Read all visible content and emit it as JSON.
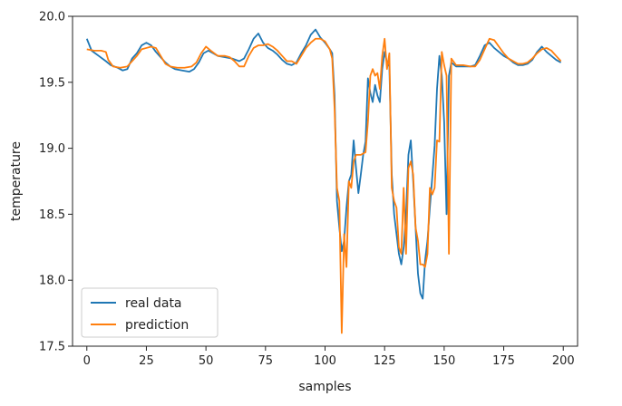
{
  "chart_data": {
    "type": "line",
    "title": "",
    "xlabel": "samples",
    "ylabel": "temperature",
    "xlim": [
      -6,
      206
    ],
    "ylim": [
      17.5,
      20.0
    ],
    "x_ticks": [
      0,
      25,
      50,
      75,
      100,
      125,
      150,
      175,
      200
    ],
    "y_ticks": [
      17.5,
      18.0,
      18.5,
      19.0,
      19.5,
      20.0
    ],
    "x_tick_labels": [
      "0",
      "25",
      "50",
      "75",
      "100",
      "125",
      "150",
      "175",
      "200"
    ],
    "y_tick_labels": [
      "17.5",
      "18.0",
      "18.5",
      "19.0",
      "19.5",
      "20.0"
    ],
    "grid": false,
    "legend": "lower-left",
    "series": [
      {
        "name": "real data",
        "color": "#1f77b4",
        "points": [
          [
            0,
            19.83
          ],
          [
            2,
            19.74
          ],
          [
            5,
            19.7
          ],
          [
            8,
            19.66
          ],
          [
            10,
            19.63
          ],
          [
            13,
            19.61
          ],
          [
            15,
            19.59
          ],
          [
            17,
            19.6
          ],
          [
            19,
            19.68
          ],
          [
            21,
            19.72
          ],
          [
            23,
            19.78
          ],
          [
            25,
            19.8
          ],
          [
            27,
            19.78
          ],
          [
            29,
            19.73
          ],
          [
            31,
            19.69
          ],
          [
            33,
            19.65
          ],
          [
            35,
            19.62
          ],
          [
            37,
            19.6
          ],
          [
            40,
            19.59
          ],
          [
            43,
            19.58
          ],
          [
            45,
            19.6
          ],
          [
            47,
            19.65
          ],
          [
            49,
            19.72
          ],
          [
            51,
            19.74
          ],
          [
            53,
            19.72
          ],
          [
            55,
            19.7
          ],
          [
            58,
            19.69
          ],
          [
            61,
            19.68
          ],
          [
            64,
            19.66
          ],
          [
            66,
            19.68
          ],
          [
            68,
            19.75
          ],
          [
            70,
            19.83
          ],
          [
            72,
            19.87
          ],
          [
            74,
            19.8
          ],
          [
            76,
            19.76
          ],
          [
            78,
            19.74
          ],
          [
            80,
            19.71
          ],
          [
            82,
            19.67
          ],
          [
            84,
            19.64
          ],
          [
            86,
            19.63
          ],
          [
            88,
            19.65
          ],
          [
            90,
            19.72
          ],
          [
            92,
            19.78
          ],
          [
            94,
            19.86
          ],
          [
            96,
            19.9
          ],
          [
            98,
            19.84
          ],
          [
            100,
            19.8
          ],
          [
            102,
            19.75
          ],
          [
            103,
            19.72
          ],
          [
            104,
            19.4
          ],
          [
            105,
            18.6
          ],
          [
            106,
            18.4
          ],
          [
            107,
            18.22
          ],
          [
            108,
            18.3
          ],
          [
            109,
            18.55
          ],
          [
            110,
            18.75
          ],
          [
            111,
            18.8
          ],
          [
            112,
            19.06
          ],
          [
            113,
            18.85
          ],
          [
            114,
            18.66
          ],
          [
            115,
            18.8
          ],
          [
            116,
            18.95
          ],
          [
            117,
            19.05
          ],
          [
            118,
            19.53
          ],
          [
            119,
            19.42
          ],
          [
            120,
            19.35
          ],
          [
            121,
            19.48
          ],
          [
            122,
            19.4
          ],
          [
            123,
            19.35
          ],
          [
            124,
            19.6
          ],
          [
            125,
            19.73
          ],
          [
            126,
            19.65
          ],
          [
            127,
            19.62
          ],
          [
            128,
            18.8
          ],
          [
            129,
            18.5
          ],
          [
            130,
            18.35
          ],
          [
            131,
            18.2
          ],
          [
            132,
            18.12
          ],
          [
            133,
            18.25
          ],
          [
            134,
            18.5
          ],
          [
            135,
            18.95
          ],
          [
            136,
            19.06
          ],
          [
            137,
            18.75
          ],
          [
            138,
            18.4
          ],
          [
            139,
            18.05
          ],
          [
            140,
            17.9
          ],
          [
            141,
            17.86
          ],
          [
            142,
            18.15
          ],
          [
            143,
            18.3
          ],
          [
            144,
            18.55
          ],
          [
            145,
            18.78
          ],
          [
            146,
            19.02
          ],
          [
            147,
            19.45
          ],
          [
            148,
            19.7
          ],
          [
            149,
            19.55
          ],
          [
            150,
            19.2
          ],
          [
            151,
            18.5
          ],
          [
            152,
            19.55
          ],
          [
            153,
            19.65
          ],
          [
            155,
            19.62
          ],
          [
            158,
            19.62
          ],
          [
            161,
            19.62
          ],
          [
            163,
            19.63
          ],
          [
            165,
            19.7
          ],
          [
            167,
            19.78
          ],
          [
            169,
            19.8
          ],
          [
            171,
            19.76
          ],
          [
            173,
            19.73
          ],
          [
            175,
            19.7
          ],
          [
            177,
            19.68
          ],
          [
            179,
            19.65
          ],
          [
            181,
            19.63
          ],
          [
            183,
            19.63
          ],
          [
            185,
            19.64
          ],
          [
            187,
            19.67
          ],
          [
            189,
            19.73
          ],
          [
            191,
            19.77
          ],
          [
            193,
            19.73
          ],
          [
            195,
            19.7
          ],
          [
            197,
            19.67
          ],
          [
            199,
            19.65
          ]
        ]
      },
      {
        "name": "prediction",
        "color": "#ff7f0e",
        "points": [
          [
            0,
            19.75
          ],
          [
            3,
            19.74
          ],
          [
            6,
            19.74
          ],
          [
            8,
            19.73
          ],
          [
            9,
            19.67
          ],
          [
            11,
            19.62
          ],
          [
            14,
            19.61
          ],
          [
            17,
            19.62
          ],
          [
            19,
            19.66
          ],
          [
            21,
            19.7
          ],
          [
            23,
            19.75
          ],
          [
            25,
            19.76
          ],
          [
            27,
            19.77
          ],
          [
            29,
            19.76
          ],
          [
            31,
            19.7
          ],
          [
            33,
            19.64
          ],
          [
            35,
            19.62
          ],
          [
            38,
            19.61
          ],
          [
            41,
            19.61
          ],
          [
            44,
            19.62
          ],
          [
            46,
            19.65
          ],
          [
            48,
            19.72
          ],
          [
            50,
            19.77
          ],
          [
            52,
            19.74
          ],
          [
            55,
            19.7
          ],
          [
            58,
            19.7
          ],
          [
            60,
            19.69
          ],
          [
            62,
            19.66
          ],
          [
            64,
            19.62
          ],
          [
            66,
            19.62
          ],
          [
            68,
            19.7
          ],
          [
            70,
            19.76
          ],
          [
            72,
            19.78
          ],
          [
            74,
            19.78
          ],
          [
            76,
            19.79
          ],
          [
            78,
            19.77
          ],
          [
            80,
            19.74
          ],
          [
            82,
            19.7
          ],
          [
            84,
            19.66
          ],
          [
            86,
            19.66
          ],
          [
            88,
            19.64
          ],
          [
            90,
            19.7
          ],
          [
            92,
            19.76
          ],
          [
            94,
            19.8
          ],
          [
            96,
            19.83
          ],
          [
            98,
            19.83
          ],
          [
            100,
            19.81
          ],
          [
            102,
            19.75
          ],
          [
            103,
            19.68
          ],
          [
            104,
            19.3
          ],
          [
            105,
            18.7
          ],
          [
            106,
            18.6
          ],
          [
            107,
            17.6
          ],
          [
            108,
            18.35
          ],
          [
            109,
            18.1
          ],
          [
            110,
            18.75
          ],
          [
            111,
            18.7
          ],
          [
            112,
            18.9
          ],
          [
            113,
            18.95
          ],
          [
            115,
            18.95
          ],
          [
            117,
            18.97
          ],
          [
            118,
            19.2
          ],
          [
            119,
            19.55
          ],
          [
            120,
            19.6
          ],
          [
            121,
            19.55
          ],
          [
            122,
            19.57
          ],
          [
            123,
            19.45
          ],
          [
            124,
            19.7
          ],
          [
            125,
            19.83
          ],
          [
            126,
            19.6
          ],
          [
            127,
            19.72
          ],
          [
            128,
            18.7
          ],
          [
            129,
            18.6
          ],
          [
            130,
            18.55
          ],
          [
            131,
            18.25
          ],
          [
            132,
            18.2
          ],
          [
            133,
            18.7
          ],
          [
            134,
            18.2
          ],
          [
            135,
            18.85
          ],
          [
            136,
            18.9
          ],
          [
            137,
            18.8
          ],
          [
            138,
            18.4
          ],
          [
            139,
            18.3
          ],
          [
            140,
            18.12
          ],
          [
            141,
            18.12
          ],
          [
            142,
            18.1
          ],
          [
            143,
            18.2
          ],
          [
            144,
            18.7
          ],
          [
            145,
            18.65
          ],
          [
            146,
            18.7
          ],
          [
            147,
            19.06
          ],
          [
            148,
            19.05
          ],
          [
            149,
            19.73
          ],
          [
            150,
            19.63
          ],
          [
            151,
            19.55
          ],
          [
            152,
            18.2
          ],
          [
            153,
            19.68
          ],
          [
            155,
            19.63
          ],
          [
            158,
            19.63
          ],
          [
            161,
            19.62
          ],
          [
            163,
            19.62
          ],
          [
            165,
            19.67
          ],
          [
            167,
            19.75
          ],
          [
            169,
            19.83
          ],
          [
            171,
            19.82
          ],
          [
            173,
            19.77
          ],
          [
            175,
            19.72
          ],
          [
            177,
            19.68
          ],
          [
            179,
            19.66
          ],
          [
            181,
            19.64
          ],
          [
            183,
            19.64
          ],
          [
            185,
            19.65
          ],
          [
            187,
            19.68
          ],
          [
            189,
            19.72
          ],
          [
            191,
            19.75
          ],
          [
            193,
            19.76
          ],
          [
            195,
            19.74
          ],
          [
            197,
            19.7
          ],
          [
            199,
            19.66
          ]
        ]
      }
    ]
  }
}
